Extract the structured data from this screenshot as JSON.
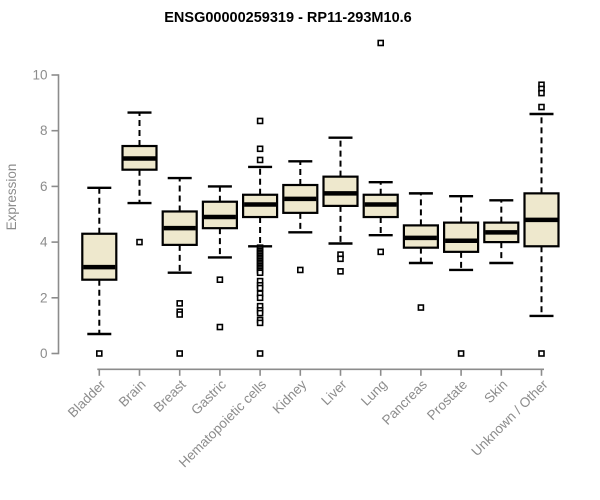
{
  "chart_data": {
    "type": "boxplot",
    "title": "ENSG00000259319 - RP11-293M10.6",
    "ylabel": "Expression",
    "xlabel": "",
    "ylim": [
      0,
      10
    ],
    "yticks": [
      0,
      2,
      4,
      6,
      8,
      10
    ],
    "grid": false,
    "legend": "none",
    "categories": [
      "Bladder",
      "Brain",
      "Breast",
      "Gastric",
      "Hematopoietic cells",
      "Kidney",
      "Liver",
      "Lung",
      "Pancreas",
      "Prostate",
      "Skin",
      "Unknown / Other"
    ],
    "series": [
      {
        "name": "Bladder",
        "whislo": 0.7,
        "q1": 2.65,
        "med": 3.1,
        "q3": 4.3,
        "whishi": 5.95,
        "outliers": [
          0
        ]
      },
      {
        "name": "Brain",
        "whislo": 5.4,
        "q1": 6.6,
        "med": 7.0,
        "q3": 7.45,
        "whishi": 8.65,
        "outliers": [
          4.0
        ]
      },
      {
        "name": "Breast",
        "whislo": 2.9,
        "q1": 3.9,
        "med": 4.5,
        "q3": 5.1,
        "whishi": 6.3,
        "outliers": [
          1.8,
          1.5,
          1.4,
          0
        ]
      },
      {
        "name": "Gastric",
        "whislo": 3.45,
        "q1": 4.5,
        "med": 4.9,
        "q3": 5.45,
        "whishi": 6.0,
        "outliers": [
          2.65,
          0.95
        ]
      },
      {
        "name": "Hematopoietic cells",
        "whislo": 3.85,
        "q1": 4.9,
        "med": 5.35,
        "q3": 5.7,
        "whishi": 6.7,
        "outliers": [
          8.35,
          7.35,
          6.95,
          3.8,
          3.74,
          3.68,
          3.62,
          3.56,
          3.5,
          3.44,
          3.38,
          3.32,
          3.26,
          3.2,
          3.14,
          3.08,
          3.02,
          2.96,
          2.9,
          2.6,
          2.45,
          2.35,
          2.15,
          2.0,
          1.7,
          1.55,
          1.45,
          1.2,
          1.1,
          0
        ]
      },
      {
        "name": "Kidney",
        "whislo": 4.35,
        "q1": 5.05,
        "med": 5.55,
        "q3": 6.05,
        "whishi": 6.9,
        "outliers": [
          3.0
        ]
      },
      {
        "name": "Liver",
        "whislo": 3.95,
        "q1": 5.3,
        "med": 5.75,
        "q3": 6.35,
        "whishi": 7.75,
        "outliers": [
          3.55,
          3.4,
          2.95
        ]
      },
      {
        "name": "Lung",
        "whislo": 4.25,
        "q1": 4.9,
        "med": 5.35,
        "q3": 5.7,
        "whishi": 6.15,
        "outliers": [
          11.15,
          3.65
        ]
      },
      {
        "name": "Pancreas",
        "whislo": 3.25,
        "q1": 3.8,
        "med": 4.15,
        "q3": 4.6,
        "whishi": 5.75,
        "outliers": [
          1.65
        ]
      },
      {
        "name": "Prostate",
        "whislo": 3.0,
        "q1": 3.65,
        "med": 4.05,
        "q3": 4.7,
        "whishi": 5.65,
        "outliers": [
          0
        ]
      },
      {
        "name": "Skin",
        "whislo": 3.25,
        "q1": 4.0,
        "med": 4.35,
        "q3": 4.7,
        "whishi": 5.5,
        "outliers": []
      },
      {
        "name": "Unknown / Other",
        "whislo": 1.35,
        "q1": 3.85,
        "med": 4.8,
        "q3": 5.75,
        "whishi": 8.6,
        "outliers": [
          9.65,
          9.5,
          9.35,
          8.85,
          0
        ]
      }
    ],
    "colors": {
      "box_fill": "#EEE8CD",
      "box_border": "#000000",
      "median": "#000000",
      "whisker": "#000000",
      "outlier_fill": "#ffffff",
      "outlier_border": "#000000",
      "axis": "#8c8c8c",
      "tick_label": "#8c8c8c",
      "title": "#000000",
      "background": "#ffffff"
    }
  }
}
